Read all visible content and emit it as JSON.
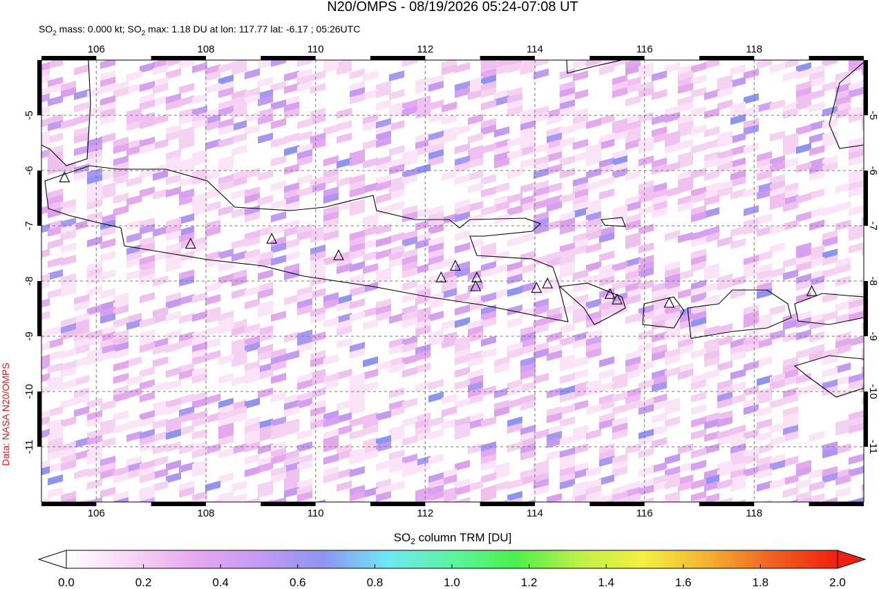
{
  "title": "N20/OMPS - 08/19/2026 05:24-07:08 UT",
  "subtitle": {
    "part1": "SO",
    "sub1": "2",
    "part2": " mass: 0.000 kt; SO",
    "sub2": "2",
    "part3": " max: 1.18 DU at lon: 117.77 lat: -6.17 ; 05:26UTC"
  },
  "credit": "Data: NASA N20/OMPS",
  "map": {
    "xlim": [
      105,
      120
    ],
    "ylim": [
      -12,
      -4
    ],
    "xticks": [
      106,
      108,
      110,
      112,
      114,
      116,
      118
    ],
    "yticks": [
      -5,
      -6,
      -7,
      -8,
      -9,
      -10,
      -11
    ],
    "grid": true,
    "volcanoes": [
      [
        105.42,
        -6.13
      ],
      [
        107.72,
        -7.33
      ],
      [
        109.2,
        -7.24
      ],
      [
        110.42,
        -7.54
      ],
      [
        112.29,
        -7.94
      ],
      [
        112.55,
        -7.73
      ],
      [
        112.94,
        -7.94
      ],
      [
        112.92,
        -8.1
      ],
      [
        114.03,
        -8.13
      ],
      [
        114.23,
        -8.05
      ],
      [
        115.37,
        -8.24
      ],
      [
        115.5,
        -8.34
      ],
      [
        116.45,
        -8.4
      ],
      [
        119.05,
        -8.19
      ]
    ]
  },
  "colorbar": {
    "label_part1": "SO",
    "label_sub": "2",
    "label_part2": " column TRM [DU]",
    "range": [
      0,
      2
    ],
    "ticks": [
      {
        "value": 0,
        "label": "0.0"
      },
      {
        "value": 0.2,
        "label": "0.2"
      },
      {
        "value": 0.4,
        "label": "0.4"
      },
      {
        "value": 0.6,
        "label": "0.6"
      },
      {
        "value": 0.8,
        "label": "0.8"
      },
      {
        "value": 1,
        "label": "1.0"
      },
      {
        "value": 1.2,
        "label": "1.2"
      },
      {
        "value": 1.4,
        "label": "1.4"
      },
      {
        "value": 1.6,
        "label": "1.6"
      },
      {
        "value": 1.8,
        "label": "1.8"
      },
      {
        "value": 2,
        "label": "2.0"
      }
    ],
    "colors": [
      "#ffffff",
      "#f6d6f4",
      "#e8a8f0",
      "#c49af2",
      "#8e94f4",
      "#6ee8f4",
      "#5cf4a0",
      "#4cf04c",
      "#c0f048",
      "#f4f040",
      "#f4b030",
      "#f06020",
      "#f02010"
    ]
  }
}
